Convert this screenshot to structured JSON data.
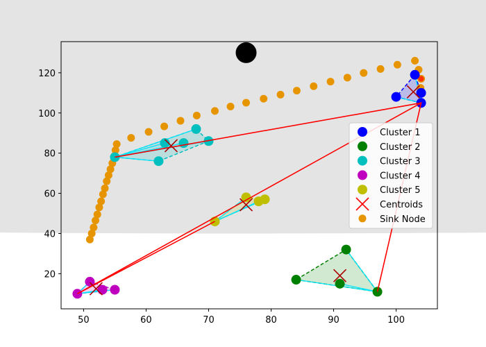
{
  "chart_data": {
    "type": "scatter",
    "title": "",
    "xlabel": "",
    "ylabel": "",
    "xlim": [
      46.4,
      106.6
    ],
    "ylim": [
      2.5,
      135.5
    ],
    "xticks": [
      50,
      60,
      70,
      80,
      90,
      100
    ],
    "yticks": [
      20,
      40,
      60,
      80,
      100,
      120
    ],
    "grid": false,
    "legend_position": "center-right",
    "background_disc": {
      "cx": 76,
      "cy": 130,
      "r": 90,
      "color": "#e4e4e4"
    },
    "base_station": {
      "x": 76,
      "y": 130,
      "color": "#000000"
    },
    "clusters": [
      {
        "name": "Cluster 1",
        "color": "#0000ff",
        "points": [
          [
            100,
            108
          ],
          [
            103,
            119
          ],
          [
            104,
            110
          ],
          [
            104,
            105
          ]
        ],
        "centroid": [
          102.75,
          110.5
        ]
      },
      {
        "name": "Cluster 2",
        "color": "#008000",
        "points": [
          [
            84,
            17
          ],
          [
            92,
            32
          ],
          [
            91,
            15
          ],
          [
            97,
            11
          ]
        ],
        "centroid": [
          91,
          19
        ]
      },
      {
        "name": "Cluster 3",
        "color": "#00bfbf",
        "points": [
          [
            55,
            78
          ],
          [
            62,
            76
          ],
          [
            63,
            85
          ],
          [
            66,
            85
          ],
          [
            68,
            92
          ],
          [
            70,
            86
          ]
        ],
        "centroid": [
          64,
          83.7
        ]
      },
      {
        "name": "Cluster 4",
        "color": "#bf00bf",
        "points": [
          [
            49,
            10
          ],
          [
            51,
            16
          ],
          [
            53,
            12
          ],
          [
            55,
            12
          ]
        ],
        "centroid": [
          52,
          12.5
        ]
      },
      {
        "name": "Cluster 5",
        "color": "#bfbf00",
        "points": [
          [
            71,
            46
          ],
          [
            76,
            58
          ],
          [
            78,
            56
          ],
          [
            79,
            57
          ]
        ],
        "centroid": [
          76,
          54.3
        ]
      }
    ],
    "cluster_heads": [
      [
        104,
        105
      ],
      [
        97,
        11
      ],
      [
        55,
        78
      ],
      [
        49,
        10
      ],
      [
        71,
        46
      ]
    ],
    "route": [
      [
        55,
        78
      ],
      [
        104,
        105
      ],
      [
        97,
        11
      ],
      [
        104,
        105
      ],
      [
        49,
        10
      ],
      [
        71,
        46
      ]
    ],
    "legend_centroids": "Centroids",
    "centroid_color": "#ff0000",
    "sink": {
      "name": "Sink Node",
      "color": "#e69500",
      "path": [
        [
          51,
          37
        ],
        [
          51.3,
          40
        ],
        [
          51.6,
          43
        ],
        [
          51.9,
          46.5
        ],
        [
          52.2,
          49.5
        ],
        [
          52.5,
          53
        ],
        [
          52.8,
          56
        ],
        [
          53.1,
          59.5
        ],
        [
          53.4,
          62.5
        ],
        [
          53.7,
          66
        ],
        [
          54,
          69
        ],
        [
          54.3,
          72
        ],
        [
          54.6,
          75
        ],
        [
          54.9,
          78.5
        ],
        [
          55.1,
          81.5
        ],
        [
          55.3,
          84.5
        ],
        [
          57.6,
          87.6
        ],
        [
          60.4,
          90.6
        ],
        [
          62.9,
          93.3
        ],
        [
          65.5,
          96.1
        ],
        [
          68.1,
          98.7
        ],
        [
          71,
          101
        ],
        [
          73.5,
          103.2
        ],
        [
          76,
          105.1
        ],
        [
          78.8,
          107.1
        ],
        [
          81.5,
          109.1
        ],
        [
          84.1,
          111.1
        ],
        [
          86.8,
          113.3
        ],
        [
          89.5,
          115.6
        ],
        [
          92.2,
          117.6
        ],
        [
          94.8,
          119.9
        ],
        [
          97.5,
          121.9
        ],
        [
          100.2,
          124
        ],
        [
          103,
          126
        ],
        [
          103.6,
          121.5
        ],
        [
          104,
          117
        ],
        [
          103.9,
          112.5
        ]
      ],
      "current": [
        104,
        117
      ]
    }
  }
}
